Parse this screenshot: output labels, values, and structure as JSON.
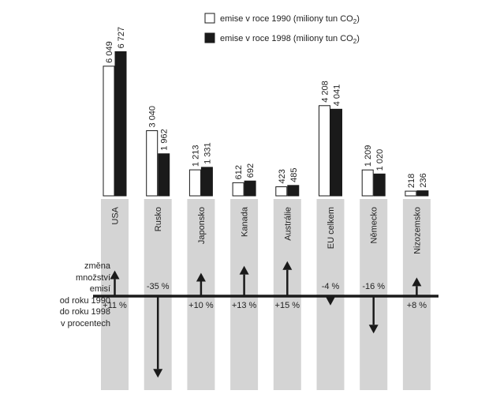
{
  "chart_data": {
    "type": "bar",
    "legend": {
      "placement": "top-right",
      "entries": [
        {
          "label": "emise v roce 1990 (miliony tun CO",
          "sub": "2",
          "close": ")",
          "color": "#ffffff"
        },
        {
          "label": "emise v roce 1998 (miliony tun CO",
          "sub": "2",
          "close": ")",
          "color": "#1a1a1a"
        }
      ]
    },
    "categories": [
      "USA",
      "Rusko",
      "Japonsko",
      "Kanada",
      "Austrálie",
      "EU celkem",
      "Německo",
      "Nizozemsko"
    ],
    "series": [
      {
        "name": "emise v roce 1990",
        "values": [
          6049,
          3040,
          1213,
          612,
          423,
          4208,
          1209,
          218
        ],
        "labels": [
          "6 049",
          "3 040",
          "1 213",
          "612",
          "423",
          "4 208",
          "1 209",
          "218"
        ]
      },
      {
        "name": "emise v roce 1998",
        "values": [
          6727,
          1962,
          1331,
          692,
          485,
          4041,
          1020,
          236
        ],
        "labels": [
          "6 727",
          "1 962",
          "1 331",
          "692",
          "485",
          "4 041",
          "1 020",
          "236"
        ]
      }
    ],
    "ylim": [
      0,
      7000
    ],
    "change": {
      "values": [
        11,
        -35,
        10,
        13,
        15,
        -4,
        -16,
        8
      ],
      "labels": [
        "+11 %",
        "-35 %",
        "+10 %",
        "+13 %",
        "+15 %",
        "-4 %",
        "-16 %",
        "+8 %"
      ]
    },
    "side_label": [
      "změna",
      "množství",
      "emisí",
      "od roku 1990",
      "do roku 1998",
      "v procentech"
    ],
    "colors": {
      "column": "#d4d4d4",
      "bar1990": "#ffffff",
      "bar1998": "#1a1a1a",
      "axis": "#1a1a1a"
    }
  }
}
